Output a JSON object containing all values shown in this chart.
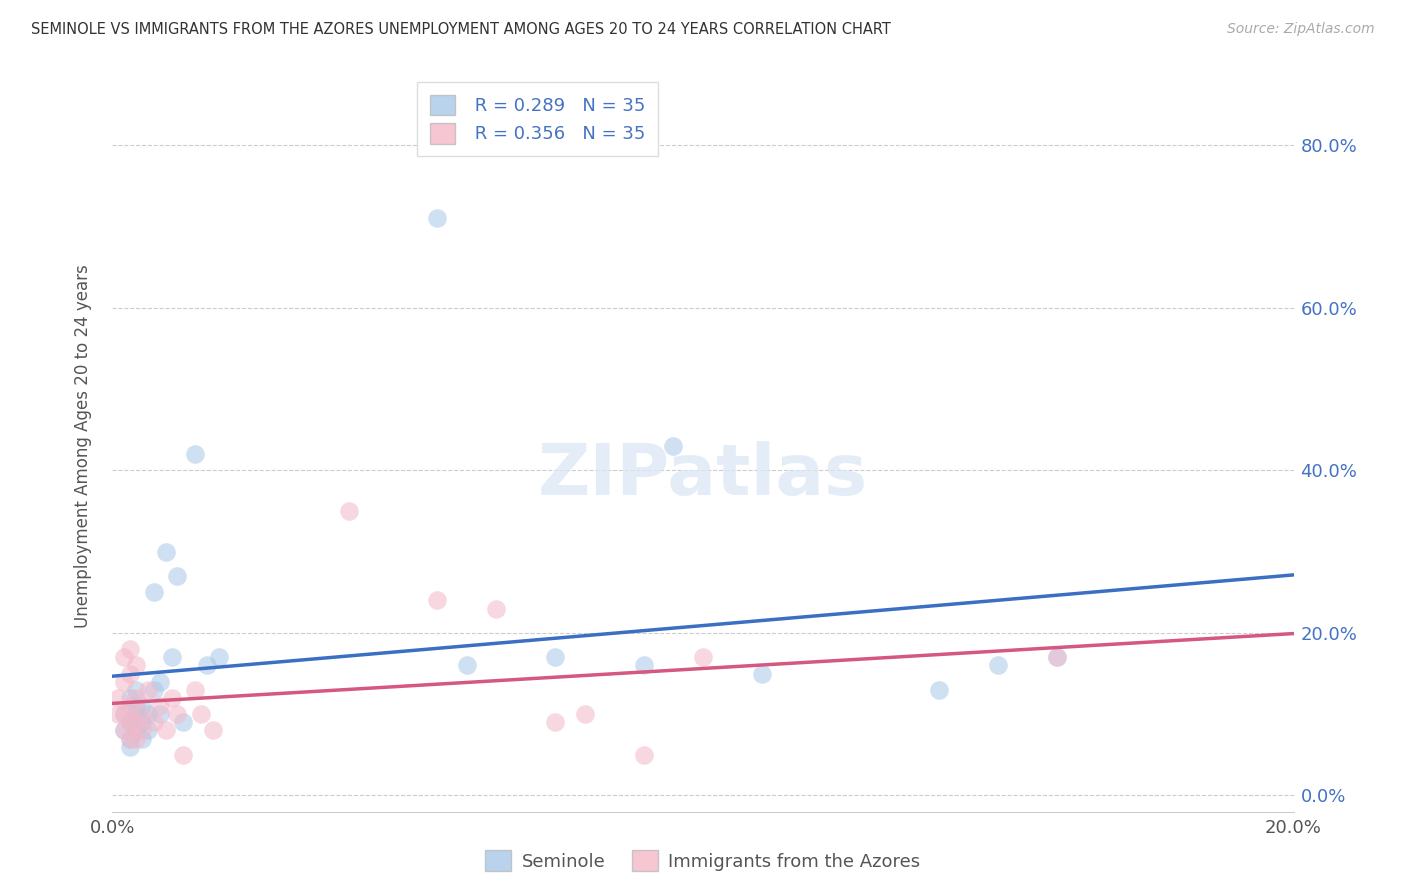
{
  "title": "SEMINOLE VS IMMIGRANTS FROM THE AZORES UNEMPLOYMENT AMONG AGES 20 TO 24 YEARS CORRELATION CHART",
  "source": "Source: ZipAtlas.com",
  "ylabel": "Unemployment Among Ages 20 to 24 years",
  "xlim": [
    0.0,
    0.2
  ],
  "ylim": [
    -0.02,
    0.88
  ],
  "xticks": [
    0.0,
    0.04,
    0.08,
    0.12,
    0.16,
    0.2
  ],
  "yticks": [
    0.0,
    0.2,
    0.4,
    0.6,
    0.8
  ],
  "xtick_labels": [
    "0.0%",
    "",
    "",
    "",
    "",
    "20.0%"
  ],
  "ytick_labels": [
    "0.0%",
    "20.0%",
    "40.0%",
    "60.0%",
    "80.0%"
  ],
  "color_blue": "#a8c8e8",
  "color_pink": "#f4b8c8",
  "line_blue": "#3a6fc4",
  "line_pink": "#d45880",
  "R_blue": 0.289,
  "N_blue": 35,
  "R_pink": 0.356,
  "N_pink": 35,
  "legend_label_blue": "Seminole",
  "legend_label_pink": "Immigrants from the Azores",
  "background_color": "#ffffff",
  "watermark": "ZIPatlas",
  "seminole_x": [
    0.002,
    0.002,
    0.003,
    0.003,
    0.003,
    0.003,
    0.004,
    0.004,
    0.004,
    0.004,
    0.005,
    0.005,
    0.005,
    0.006,
    0.006,
    0.007,
    0.007,
    0.008,
    0.008,
    0.009,
    0.01,
    0.011,
    0.012,
    0.014,
    0.016,
    0.018,
    0.055,
    0.06,
    0.075,
    0.09,
    0.095,
    0.11,
    0.14,
    0.15,
    0.16
  ],
  "seminole_y": [
    0.08,
    0.1,
    0.06,
    0.07,
    0.09,
    0.12,
    0.08,
    0.1,
    0.11,
    0.13,
    0.07,
    0.09,
    0.11,
    0.1,
    0.08,
    0.13,
    0.25,
    0.14,
    0.1,
    0.3,
    0.17,
    0.27,
    0.09,
    0.42,
    0.16,
    0.17,
    0.71,
    0.16,
    0.17,
    0.16,
    0.43,
    0.15,
    0.13,
    0.16,
    0.17
  ],
  "azores_x": [
    0.001,
    0.001,
    0.002,
    0.002,
    0.002,
    0.002,
    0.003,
    0.003,
    0.003,
    0.003,
    0.003,
    0.004,
    0.004,
    0.004,
    0.004,
    0.005,
    0.005,
    0.006,
    0.007,
    0.008,
    0.009,
    0.01,
    0.011,
    0.012,
    0.014,
    0.015,
    0.017,
    0.04,
    0.055,
    0.065,
    0.075,
    0.08,
    0.09,
    0.1,
    0.16
  ],
  "azores_y": [
    0.1,
    0.12,
    0.08,
    0.1,
    0.14,
    0.17,
    0.07,
    0.09,
    0.11,
    0.15,
    0.18,
    0.07,
    0.09,
    0.12,
    0.16,
    0.08,
    0.1,
    0.13,
    0.09,
    0.11,
    0.08,
    0.12,
    0.1,
    0.05,
    0.13,
    0.1,
    0.08,
    0.35,
    0.24,
    0.23,
    0.09,
    0.1,
    0.05,
    0.17,
    0.17
  ]
}
